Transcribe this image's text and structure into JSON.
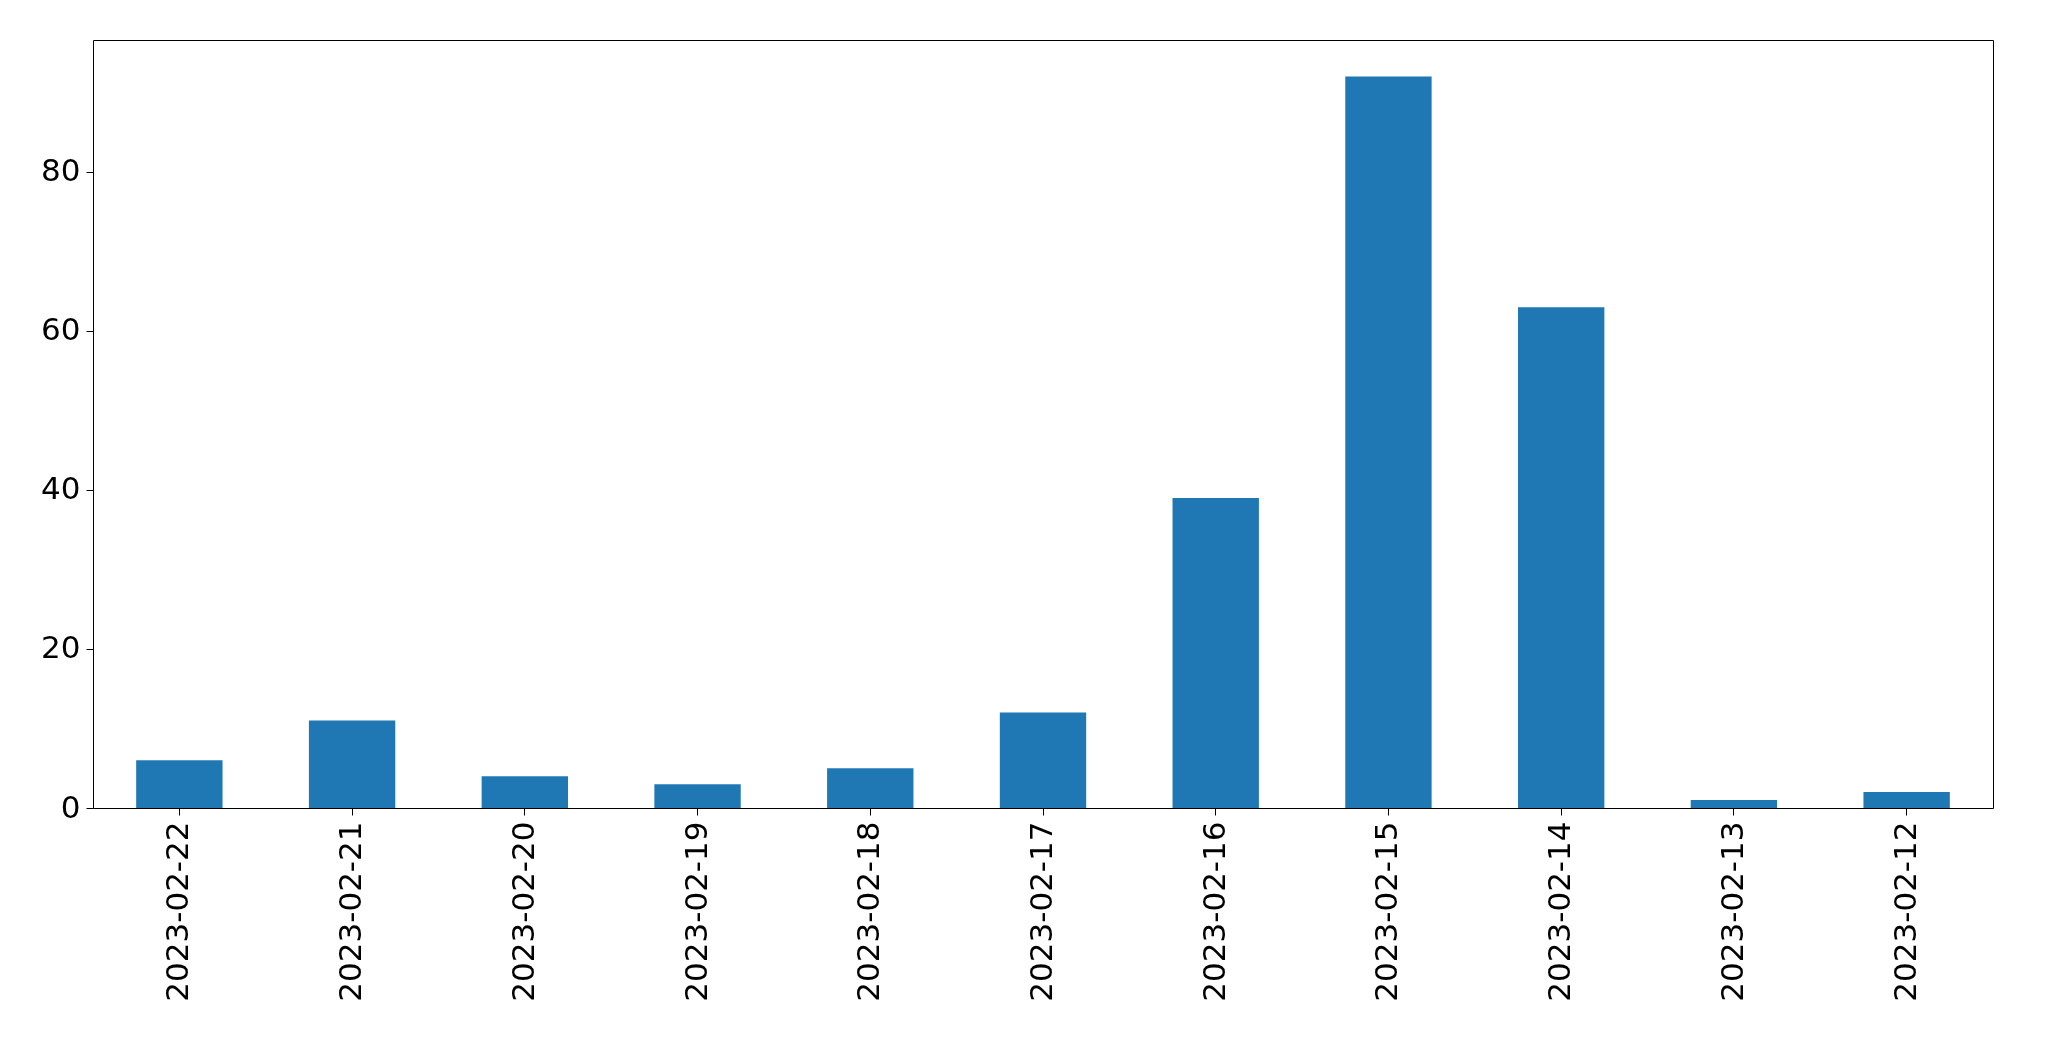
{
  "chart_data": {
    "type": "bar",
    "categories": [
      "2023-02-22",
      "2023-02-21",
      "2023-02-20",
      "2023-02-19",
      "2023-02-18",
      "2023-02-17",
      "2023-02-16",
      "2023-02-15",
      "2023-02-14",
      "2023-02-13",
      "2023-02-12"
    ],
    "values": [
      6,
      11,
      4,
      3,
      5,
      12,
      39,
      92,
      63,
      1,
      2
    ],
    "color": "#1f77b4",
    "ylim": [
      0,
      96.6
    ],
    "yticks": [
      0,
      20,
      40,
      60,
      80
    ],
    "grid": false,
    "legend": false
  }
}
